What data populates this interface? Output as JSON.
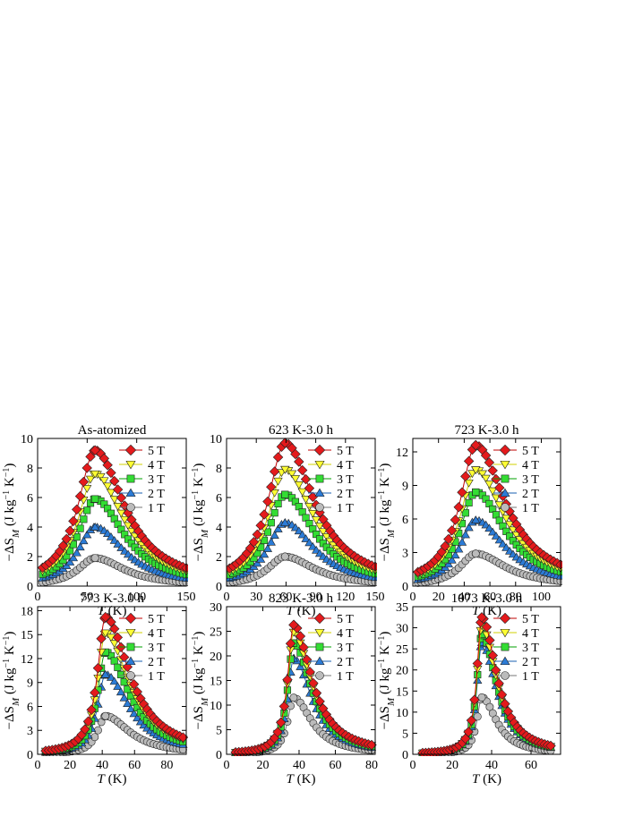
{
  "figure": {
    "legend_labels": [
      "5 T",
      "4 T",
      "3 T",
      "2 T",
      "1 T"
    ],
    "ylabel_prefix": "−ΔS",
    "ylabel_sub": "M",
    "ylabel_units_pre": " (J kg",
    "ylabel_sup1": "−1",
    "ylabel_units_mid": " K",
    "ylabel_sup2": "−1",
    "ylabel_units_post": ")",
    "xlabel_var": "T",
    "xlabel_units": " (K)"
  },
  "series_style": [
    {
      "name": "5 T",
      "marker": "diamond",
      "fill": "#e41a1c",
      "line": "#c00000"
    },
    {
      "name": "4 T",
      "marker": "triangle-down",
      "fill": "#ffff33",
      "line": "#d0d000"
    },
    {
      "name": "3 T",
      "marker": "square",
      "fill": "#33dd33",
      "line": "#00a000"
    },
    {
      "name": "2 T",
      "marker": "triangle-up",
      "fill": "#2b7bd6",
      "line": "#1a5fb0"
    },
    {
      "name": "1 T",
      "marker": "circle",
      "fill": "#bbbbbb",
      "line": "#777777"
    }
  ],
  "chart_data": [
    {
      "type": "scatter",
      "title": "As-atomized",
      "xlim": [
        0,
        150
      ],
      "ylim": [
        0,
        10
      ],
      "xticks": [
        0,
        50,
        100,
        150
      ],
      "yticks": [
        0,
        2,
        4,
        6,
        8,
        10
      ],
      "peak_T": 58,
      "w_low": 21,
      "w_high": 36,
      "start_T": 5,
      "end_T": 150,
      "series": [
        {
          "name": "5 T",
          "peak": 9.2
        },
        {
          "name": "4 T",
          "peak": 7.6
        },
        {
          "name": "3 T",
          "peak": 5.9
        },
        {
          "name": "2 T",
          "peak": 4.0
        },
        {
          "name": "1 T",
          "peak": 1.9
        }
      ]
    },
    {
      "type": "scatter",
      "title": "623 K-3.0 h",
      "xlim": [
        0,
        150
      ],
      "ylim": [
        0,
        10
      ],
      "xticks": [
        0,
        30,
        60,
        90,
        120,
        150
      ],
      "yticks": [
        0,
        2,
        4,
        6,
        8,
        10
      ],
      "peak_T": 59,
      "w_low": 21,
      "w_high": 36,
      "start_T": 3,
      "end_T": 150,
      "series": [
        {
          "name": "5 T",
          "peak": 9.7
        },
        {
          "name": "4 T",
          "peak": 7.9
        },
        {
          "name": "3 T",
          "peak": 6.2
        },
        {
          "name": "2 T",
          "peak": 4.3
        },
        {
          "name": "1 T",
          "peak": 2.0
        }
      ]
    },
    {
      "type": "scatter",
      "title": "723 K-3.0 h",
      "xlim": [
        0,
        115
      ],
      "ylim": [
        0,
        13.2
      ],
      "xticks": [
        0,
        20,
        40,
        60,
        80,
        100
      ],
      "yticks": [
        0,
        3,
        6,
        9,
        12
      ],
      "peak_T": 49,
      "w_low": 15,
      "w_high": 28,
      "start_T": 4,
      "end_T": 115,
      "series": [
        {
          "name": "5 T",
          "peak": 12.6
        },
        {
          "name": "4 T",
          "peak": 10.4
        },
        {
          "name": "3 T",
          "peak": 8.4
        },
        {
          "name": "2 T",
          "peak": 5.9
        },
        {
          "name": "1 T",
          "peak": 2.9
        }
      ]
    },
    {
      "type": "scatter",
      "title": "773 K-3.0 h",
      "xlim": [
        0,
        92
      ],
      "ylim": [
        0,
        18.5
      ],
      "xticks": [
        0,
        20,
        40,
        60,
        80
      ],
      "yticks": [
        0,
        3,
        6,
        9,
        12,
        15,
        18
      ],
      "peak_T": 42,
      "w_low": 6,
      "w_high": 18,
      "start_T": 5,
      "end_T": 90,
      "series": [
        {
          "name": "5 T",
          "peak": 17.2
        },
        {
          "name": "4 T",
          "peak": 15.2
        },
        {
          "name": "3 T",
          "peak": 12.8
        },
        {
          "name": "2 T",
          "peak": 10.0
        },
        {
          "name": "1 T",
          "peak": 4.8
        }
      ]
    },
    {
      "type": "scatter",
      "title": "823 K-3.0 h",
      "xlim": [
        0,
        82
      ],
      "ylim": [
        0,
        30
      ],
      "xticks": [
        0,
        20,
        40,
        60,
        80
      ],
      "yticks": [
        0,
        5,
        10,
        15,
        20,
        25,
        30
      ],
      "peak_T": 37,
      "w_low": 4,
      "w_high": 12,
      "start_T": 5,
      "end_T": 80,
      "series": [
        {
          "name": "5 T",
          "peak": 26.3
        },
        {
          "name": "4 T",
          "peak": 24.8
        },
        {
          "name": "3 T",
          "peak": 22.6
        },
        {
          "name": "2 T",
          "peak": 19.5
        },
        {
          "name": "1 T",
          "peak": 11.5
        }
      ]
    },
    {
      "type": "scatter",
      "title": "1073 K-3.0 h",
      "xlim": [
        0,
        75
      ],
      "ylim": [
        0,
        35
      ],
      "xticks": [
        0,
        20,
        40,
        60
      ],
      "yticks": [
        0,
        5,
        10,
        15,
        20,
        25,
        30,
        35
      ],
      "peak_T": 35,
      "w_low": 3,
      "w_high": 9,
      "start_T": 5,
      "end_T": 70,
      "series": [
        {
          "name": "5 T",
          "peak": 32.5
        },
        {
          "name": "4 T",
          "peak": 30.5
        },
        {
          "name": "3 T",
          "peak": 28.5
        },
        {
          "name": "2 T",
          "peak": 26.5
        },
        {
          "name": "1 T",
          "peak": 13.5
        }
      ]
    }
  ]
}
